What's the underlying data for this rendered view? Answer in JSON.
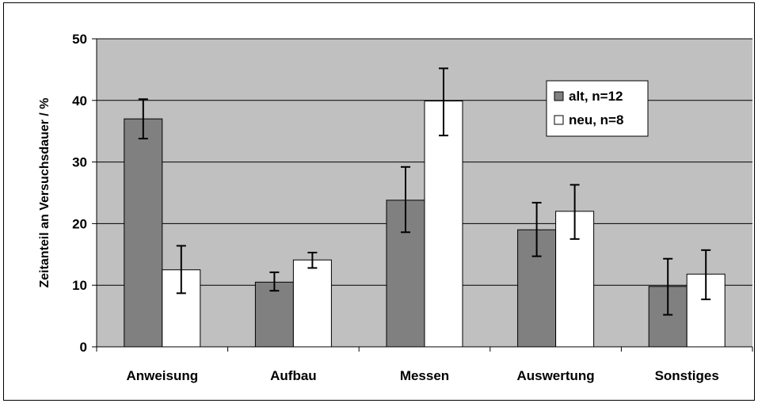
{
  "chart_data": {
    "type": "bar",
    "title": "",
    "xlabel": "",
    "ylabel": "Zeitanteil an Versuchsdauer / %",
    "ylim": [
      0,
      50
    ],
    "yticks": [
      "0",
      "10",
      "20",
      "30",
      "40",
      "50"
    ],
    "ytick_values": [
      0,
      10,
      20,
      30,
      40,
      50
    ],
    "categories": [
      "Anweisung",
      "Aufbau",
      "Messen",
      "Auswertung",
      "Sonstiges"
    ],
    "grid": true,
    "legend_position": "top-right",
    "background_color": "#c0c0c0",
    "series": [
      {
        "name": "alt, n=12",
        "color": "#808080",
        "values": [
          37.0,
          10.5,
          23.8,
          19.0,
          9.8
        ],
        "err_low": [
          33.8,
          9.1,
          18.6,
          14.7,
          5.2
        ],
        "err_high": [
          40.2,
          12.1,
          29.2,
          23.4,
          14.3
        ]
      },
      {
        "name": "neu, n=8",
        "color": "#ffffff",
        "values": [
          12.5,
          14.1,
          39.9,
          22.0,
          11.8
        ],
        "err_low": [
          8.7,
          12.8,
          34.3,
          17.5,
          7.7
        ],
        "err_high": [
          16.4,
          15.3,
          45.2,
          26.3,
          15.7
        ]
      }
    ]
  }
}
